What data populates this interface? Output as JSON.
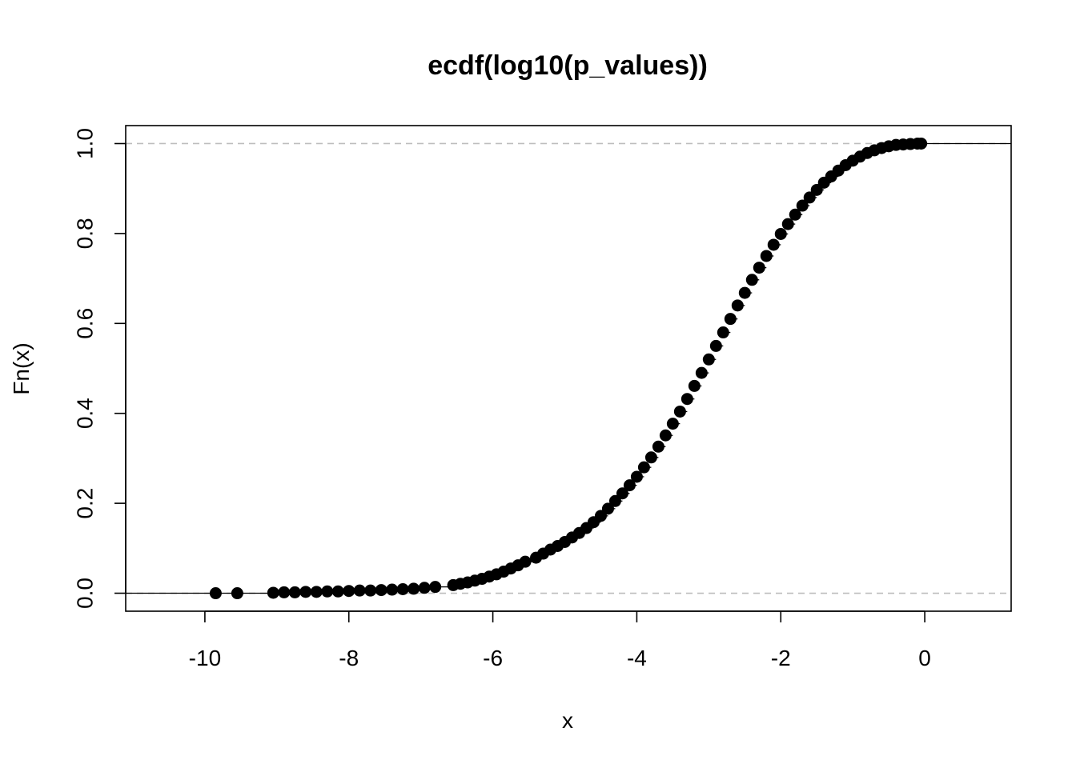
{
  "chart_data": {
    "type": "scatter",
    "title": "ecdf(log10(p_values))",
    "xlabel": "x",
    "ylabel": "Fn(x)",
    "xlim": [
      -11.1,
      1.2
    ],
    "ylim": [
      -0.04,
      1.04
    ],
    "xticks": [
      -10,
      -8,
      -6,
      -4,
      -2,
      0
    ],
    "xtick_labels": [
      "-10",
      "-8",
      "-6",
      "-4",
      "-2",
      "0"
    ],
    "yticks": [
      0,
      0.2,
      0.4,
      0.6,
      0.8,
      1
    ],
    "ytick_labels": [
      "0.0",
      "0.2",
      "0.4",
      "0.6",
      "0.8",
      "1.0"
    ],
    "reference_lines": [
      0,
      1
    ],
    "grid": false,
    "series": [
      {
        "style": "step with solid points",
        "x": [
          -9.85,
          -9.55,
          -9.05,
          -8.9,
          -8.75,
          -8.6,
          -8.45,
          -8.3,
          -8.15,
          -8.0,
          -7.85,
          -7.7,
          -7.55,
          -7.4,
          -7.25,
          -7.1,
          -6.95,
          -6.8,
          -6.55,
          -6.45,
          -6.35,
          -6.25,
          -6.15,
          -6.05,
          -5.95,
          -5.85,
          -5.75,
          -5.65,
          -5.55,
          -5.4,
          -5.3,
          -5.2,
          -5.1,
          -5.0,
          -4.9,
          -4.8,
          -4.7,
          -4.6,
          -4.5,
          -4.4,
          -4.3,
          -4.2,
          -4.1,
          -4.0,
          -3.9,
          -3.8,
          -3.7,
          -3.6,
          -3.5,
          -3.4,
          -3.3,
          -3.2,
          -3.1,
          -3.0,
          -2.9,
          -2.8,
          -2.7,
          -2.6,
          -2.5,
          -2.4,
          -2.3,
          -2.2,
          -2.1,
          -2.0,
          -1.9,
          -1.8,
          -1.7,
          -1.6,
          -1.5,
          -1.4,
          -1.3,
          -1.2,
          -1.1,
          -1.0,
          -0.9,
          -0.8,
          -0.7,
          -0.6,
          -0.5,
          -0.4,
          -0.3,
          -0.2,
          -0.1,
          -0.05
        ],
        "y": [
          0.0,
          0.0,
          0.001,
          0.002,
          0.002,
          0.003,
          0.003,
          0.004,
          0.004,
          0.005,
          0.006,
          0.006,
          0.007,
          0.008,
          0.009,
          0.01,
          0.012,
          0.014,
          0.018,
          0.021,
          0.024,
          0.028,
          0.032,
          0.037,
          0.042,
          0.048,
          0.055,
          0.062,
          0.07,
          0.079,
          0.088,
          0.097,
          0.105,
          0.114,
          0.124,
          0.134,
          0.145,
          0.158,
          0.172,
          0.188,
          0.205,
          0.222,
          0.24,
          0.259,
          0.28,
          0.302,
          0.326,
          0.351,
          0.377,
          0.404,
          0.432,
          0.461,
          0.49,
          0.52,
          0.55,
          0.58,
          0.61,
          0.64,
          0.668,
          0.697,
          0.724,
          0.75,
          0.775,
          0.799,
          0.821,
          0.842,
          0.862,
          0.88,
          0.897,
          0.913,
          0.927,
          0.94,
          0.952,
          0.962,
          0.971,
          0.979,
          0.985,
          0.99,
          0.994,
          0.997,
          0.998,
          0.999,
          1.0,
          1.0
        ]
      }
    ]
  }
}
